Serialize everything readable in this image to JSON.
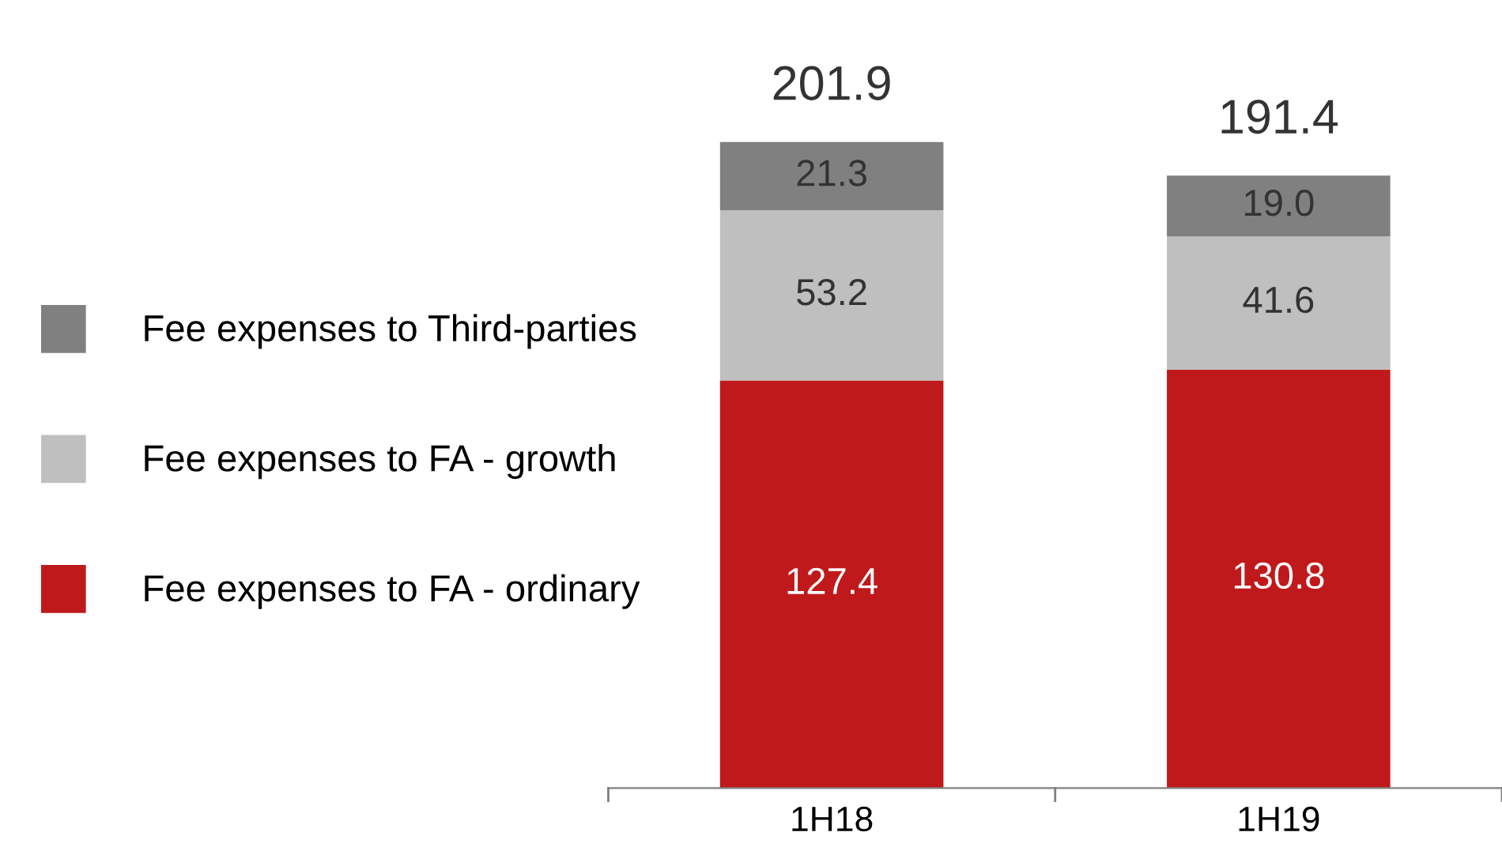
{
  "chart_data": {
    "type": "bar",
    "stacked": true,
    "categories": [
      "1H18",
      "1H19"
    ],
    "series": [
      {
        "name": "Fee expenses to FA - ordinary",
        "color": "#c0191b",
        "values": [
          127.4,
          130.8
        ],
        "value_labels": [
          "127.4",
          "130.8"
        ]
      },
      {
        "name": "Fee expenses to FA - growth",
        "color": "#bfbfbf",
        "values": [
          53.2,
          41.6
        ],
        "value_labels": [
          "53.2",
          "41.6"
        ]
      },
      {
        "name": "Fee expenses to Third-parties",
        "color": "#808080",
        "values": [
          21.3,
          19.0
        ],
        "value_labels": [
          "21.3",
          "19.0"
        ]
      }
    ],
    "totals": [
      "201.9",
      "191.4"
    ],
    "legend": "left",
    "grid": false,
    "tick_labels": "x"
  }
}
